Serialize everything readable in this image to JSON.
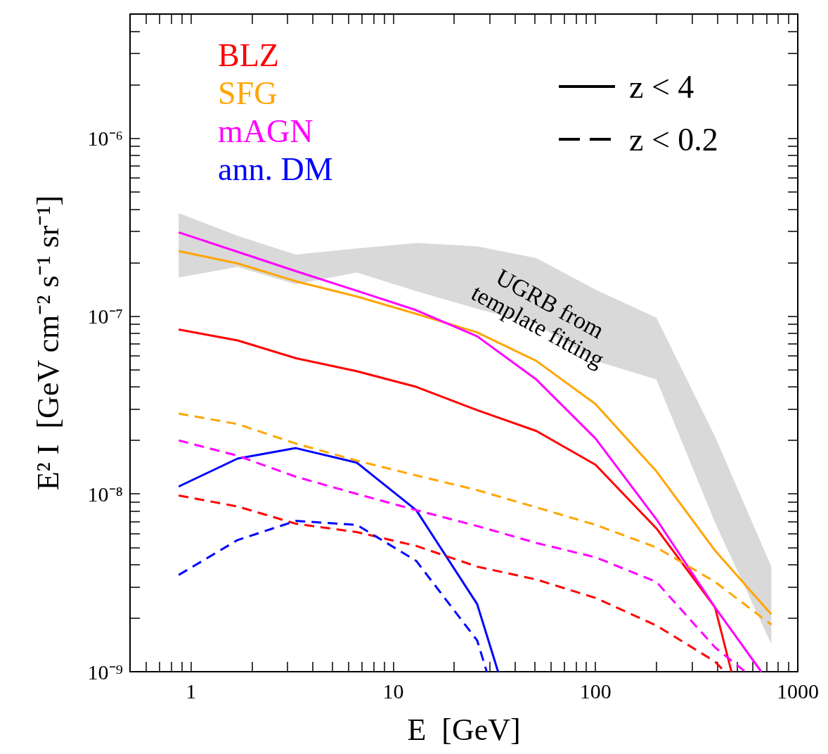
{
  "chart_data": {
    "type": "line",
    "xlabel": "E  [GeV]",
    "ylabel": "E² I  [GeV cm⁻² s⁻¹ sr⁻¹]",
    "log": "xy",
    "legend": "top left",
    "xlim": [
      0.5,
      1000
    ],
    "xticks": [
      1,
      10,
      100,
      1000
    ],
    "ylim": [
      1e-09,
      5e-06
    ],
    "yticks": [
      {
        "value": 1e-09,
        "label": "10⁻⁹"
      },
      {
        "value": 1e-08,
        "label": "10⁻⁸"
      },
      {
        "value": 1e-07,
        "label": "10⁻⁷"
      },
      {
        "value": 1e-06,
        "label": "10⁻⁶"
      }
    ],
    "annotations": [
      "z < 4",
      "z < 0.2",
      "UGRB from template fitting"
    ],
    "series": [
      {
        "color": "#d9d9d9",
        "x": [
          0.87,
          1.7,
          3.3,
          6.6,
          13,
          26,
          51,
          100,
          200,
          390,
          740
        ],
        "values": [
          null,
          null,
          null,
          null,
          null,
          null,
          null,
          null,
          null,
          null,
          null
        ],
        "lower": [
          1.65e-07,
          1.89e-07,
          1.51e-07,
          1.76e-07,
          1.38e-07,
          1.1e-07,
          9e-08,
          5.6e-08,
          4.4e-08,
          6.9e-09,
          1.43e-09
        ],
        "upper": [
          3.8e-07,
          2.83e-07,
          2.22e-07,
          2.4e-07,
          2.58e-07,
          2.47e-07,
          2.12e-07,
          1.41e-07,
          9.8e-08,
          2.1e-08,
          3.9e-09
        ]
      },
      {
        "name": "BLZ",
        "color": "#ff0000",
        "line_style": "solid",
        "x": [
          0.87,
          1.7,
          3.3,
          6.6,
          13,
          26,
          51,
          100,
          200,
          390,
          470
        ],
        "values": [
          8.4e-08,
          7.3e-08,
          5.8e-08,
          4.9e-08,
          4e-08,
          2.96e-08,
          2.26e-08,
          1.46e-08,
          6.4e-09,
          2.3e-09,
          1e-09
        ]
      },
      {
        "name": "SFG",
        "color": "#ffa500",
        "line_style": "solid",
        "x": [
          0.87,
          1.7,
          3.3,
          6.6,
          13,
          26,
          51,
          100,
          200,
          390,
          740
        ],
        "values": [
          2.32e-07,
          1.98e-07,
          1.57e-07,
          1.29e-07,
          1.03e-07,
          8.1e-08,
          5.6e-08,
          3.2e-08,
          1.34e-08,
          4.8e-09,
          2.1e-09
        ]
      },
      {
        "name": "mAGN",
        "color": "#ff00ff",
        "line_style": "solid",
        "x": [
          0.87,
          1.7,
          3.3,
          6.6,
          13,
          26,
          51,
          100,
          200,
          390,
          660
        ],
        "values": [
          2.96e-07,
          2.3e-07,
          1.79e-07,
          1.39e-07,
          1.08e-07,
          7.7e-08,
          4.4e-08,
          2.05e-08,
          7.2e-09,
          2.3e-09,
          1e-09
        ]
      },
      {
        "name": "ann. DM",
        "color": "#0000ff",
        "line_style": "solid",
        "x": [
          0.87,
          1.7,
          3.3,
          6.6,
          13,
          26,
          33
        ],
        "values": [
          1.1e-08,
          1.58e-08,
          1.81e-08,
          1.5e-08,
          8.1e-09,
          2.4e-09,
          1e-09
        ]
      },
      {
        "color": "#ff0000",
        "line_style": "dashed",
        "x": [
          0.87,
          1.7,
          3.3,
          6.6,
          13,
          26,
          51,
          100,
          200,
          390,
          435
        ],
        "values": [
          9.8e-09,
          8.5e-09,
          6.8e-09,
          6.1e-09,
          5.1e-09,
          3.9e-09,
          3.3e-09,
          2.6e-09,
          1.82e-09,
          1.14e-09,
          1e-09
        ]
      },
      {
        "color": "#ffa500",
        "line_style": "dashed",
        "x": [
          0.87,
          1.7,
          3.3,
          6.6,
          13,
          26,
          51,
          100,
          200,
          390,
          740
        ],
        "values": [
          2.83e-08,
          2.47e-08,
          1.92e-08,
          1.54e-08,
          1.27e-08,
          1.05e-08,
          8.4e-09,
          6.7e-09,
          5e-09,
          3.2e-09,
          1.84e-09
        ]
      },
      {
        "color": "#ff00ff",
        "line_style": "dashed",
        "x": [
          0.87,
          1.7,
          3.3,
          6.6,
          13,
          26,
          51,
          100,
          200,
          390,
          550
        ],
        "values": [
          2e-08,
          1.64e-08,
          1.25e-08,
          1e-08,
          8.1e-09,
          6.6e-09,
          5.3e-09,
          4.4e-09,
          3.2e-09,
          1.37e-09,
          1e-09
        ]
      },
      {
        "color": "#0000ff",
        "line_style": "dashed",
        "x": [
          0.87,
          1.7,
          3.3,
          6.6,
          13,
          26,
          29
        ],
        "values": [
          3.5e-09,
          5.5e-09,
          7.05e-09,
          6.7e-09,
          4.2e-09,
          1.5e-09,
          1e-09
        ]
      }
    ]
  }
}
